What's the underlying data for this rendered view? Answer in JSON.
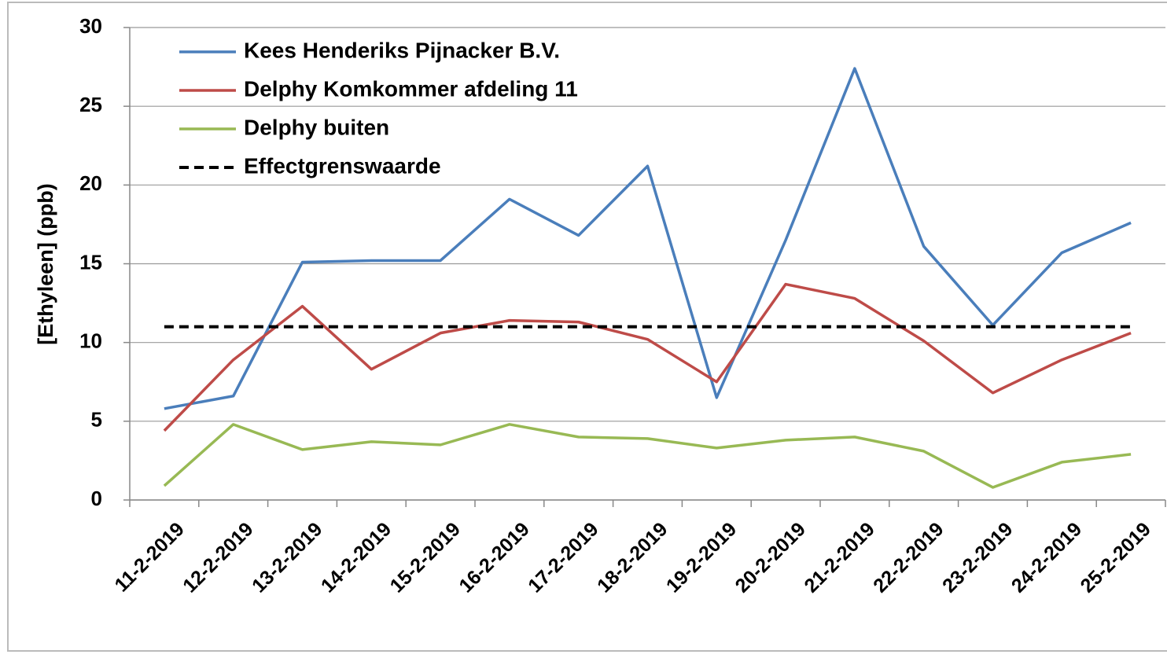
{
  "chart_data": {
    "type": "line",
    "y_label": "[Ethyleen] (ppb)",
    "categories": [
      "11-2-2019",
      "12-2-2019",
      "13-2-2019",
      "14-2-2019",
      "15-2-2019",
      "16-2-2019",
      "17-2-2019",
      "18-2-2019",
      "19-2-2019",
      "20-2-2019",
      "21-2-2019",
      "22-2-2019",
      "23-2-2019",
      "24-2-2019",
      "25-2-2019"
    ],
    "series": [
      {
        "name": "Kees Henderiks Pijnacker B.V.",
        "color": "#4a7ebb",
        "dashed": false,
        "values": [
          5.8,
          6.6,
          15.1,
          15.2,
          15.2,
          19.1,
          16.8,
          21.2,
          6.5,
          16.5,
          27.4,
          16.1,
          11.1,
          15.7,
          17.6
        ]
      },
      {
        "name": "Delphy Komkommer afdeling 11",
        "color": "#be4b48",
        "dashed": false,
        "values": [
          4.4,
          8.9,
          12.3,
          8.3,
          10.6,
          11.4,
          11.3,
          10.2,
          7.5,
          13.7,
          12.8,
          10.1,
          6.8,
          8.9,
          10.6
        ]
      },
      {
        "name": "Delphy buiten",
        "color": "#98b954",
        "dashed": false,
        "values": [
          0.9,
          4.8,
          3.2,
          3.7,
          3.5,
          4.8,
          4.0,
          3.9,
          3.3,
          3.8,
          4.0,
          3.1,
          0.8,
          2.4,
          2.9
        ]
      },
      {
        "name": "Effectgrenswaarde",
        "color": "#000000",
        "dashed": true,
        "values": [
          11,
          11,
          11,
          11,
          11,
          11,
          11,
          11,
          11,
          11,
          11,
          11,
          11,
          11,
          11
        ]
      }
    ],
    "ylim": [
      0,
      30
    ],
    "yticks": [
      0,
      5,
      10,
      15,
      20,
      25,
      30
    ],
    "grid": true,
    "legend": "top-left"
  }
}
